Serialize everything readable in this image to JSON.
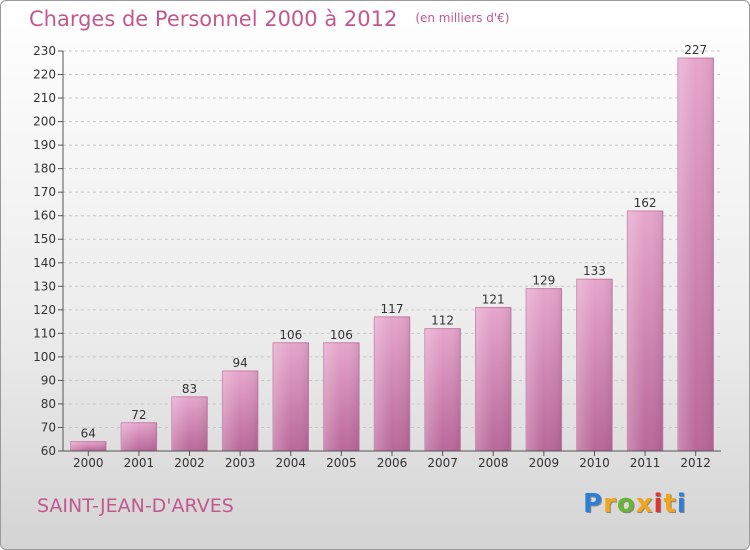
{
  "chart_data": {
    "type": "bar",
    "title": "Charges de Personnel 2000 à 2012",
    "unit": "(en milliers d'€)",
    "categories": [
      "2000",
      "2001",
      "2002",
      "2003",
      "2004",
      "2005",
      "2006",
      "2007",
      "2008",
      "2009",
      "2010",
      "2011",
      "2012"
    ],
    "values": [
      64,
      72,
      83,
      94,
      106,
      106,
      117,
      112,
      121,
      129,
      133,
      162,
      227
    ],
    "ylim": [
      60,
      230
    ],
    "yticks": [
      60,
      70,
      80,
      90,
      100,
      110,
      120,
      130,
      140,
      150,
      160,
      170,
      180,
      190,
      200,
      210,
      220,
      230
    ],
    "grid": true,
    "bar_color": "#d888b6"
  },
  "commune": "SAINT-JEAN-D'ARVES",
  "logo": {
    "letters": [
      "P",
      "r",
      "o",
      "x",
      "i",
      "t",
      "i"
    ],
    "colors": [
      "#2e7fd4",
      "#f0a51e",
      "#6ab334",
      "#f0a51e",
      "#e0342f",
      "#f0a51e",
      "#2e7fd4"
    ]
  }
}
